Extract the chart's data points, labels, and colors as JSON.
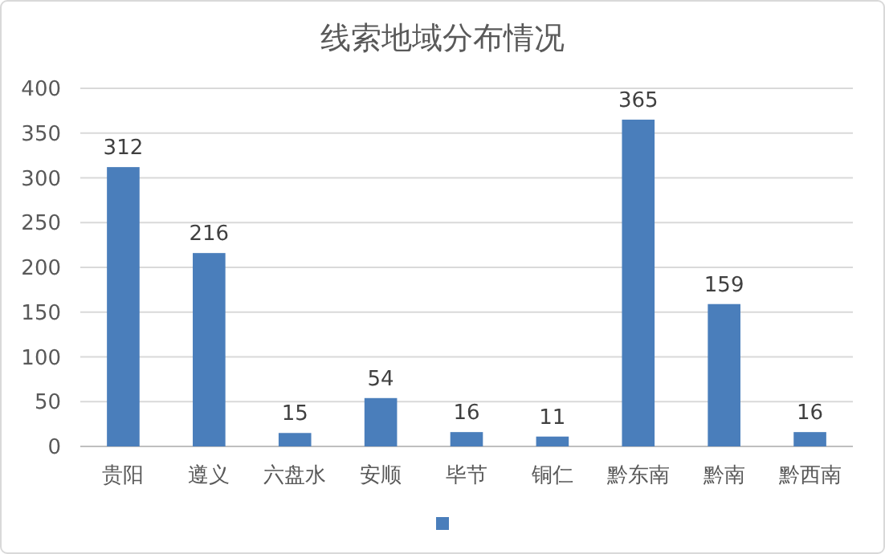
{
  "chart_data": {
    "type": "bar",
    "title": "线索地域分布情况",
    "categories": [
      "贵阳",
      "遵义",
      "六盘水",
      "安顺",
      "毕节",
      "铜仁",
      "黔东南",
      "黔南",
      "黔西南"
    ],
    "series": [
      {
        "color": "#4a7ebb",
        "values": [
          312,
          216,
          15,
          54,
          16,
          11,
          365,
          159,
          16
        ]
      }
    ],
    "ylim": [
      0,
      400
    ],
    "yticks": [
      0,
      50,
      100,
      150,
      200,
      250,
      300,
      350,
      400
    ],
    "grid": "y",
    "data_labels": true
  }
}
